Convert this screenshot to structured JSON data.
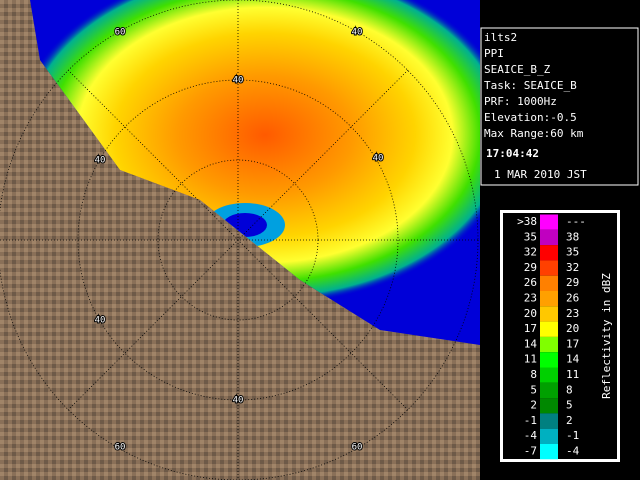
{
  "info": {
    "lines": [
      "ilts2",
      "PPI",
      "SEAICE_B_Z",
      "Task: SEAICE_B",
      "PRF: 1000Hz",
      "Elevation:-0.5",
      "Max Range:60 km"
    ],
    "time": "17:04:42",
    "date": "1 MAR 2010 JST"
  },
  "range_labels": [
    "60",
    "40",
    "40",
    "40",
    "40",
    "40",
    "40",
    "60",
    "60"
  ],
  "legend": {
    "title": "Reflectivity in dBZ",
    "lower": [
      ">38",
      "35",
      "32",
      "29",
      "26",
      "23",
      "20",
      "17",
      "14",
      "11",
      "8",
      "5",
      "2",
      "-1",
      "-4",
      "-7"
    ],
    "upper": [
      "---",
      "38",
      "35",
      "32",
      "29",
      "26",
      "23",
      "20",
      "17",
      "14",
      "11",
      "8",
      "5",
      "2",
      "-1",
      "-4"
    ],
    "colors": [
      "#ff00ff",
      "#c000c0",
      "#ff0000",
      "#ff4000",
      "#ff8000",
      "#ffa000",
      "#ffc800",
      "#ffff00",
      "#80ff00",
      "#00ff00",
      "#00d000",
      "#00a000",
      "#008800",
      "#008080",
      "#00b0c0",
      "#00ffff"
    ]
  }
}
